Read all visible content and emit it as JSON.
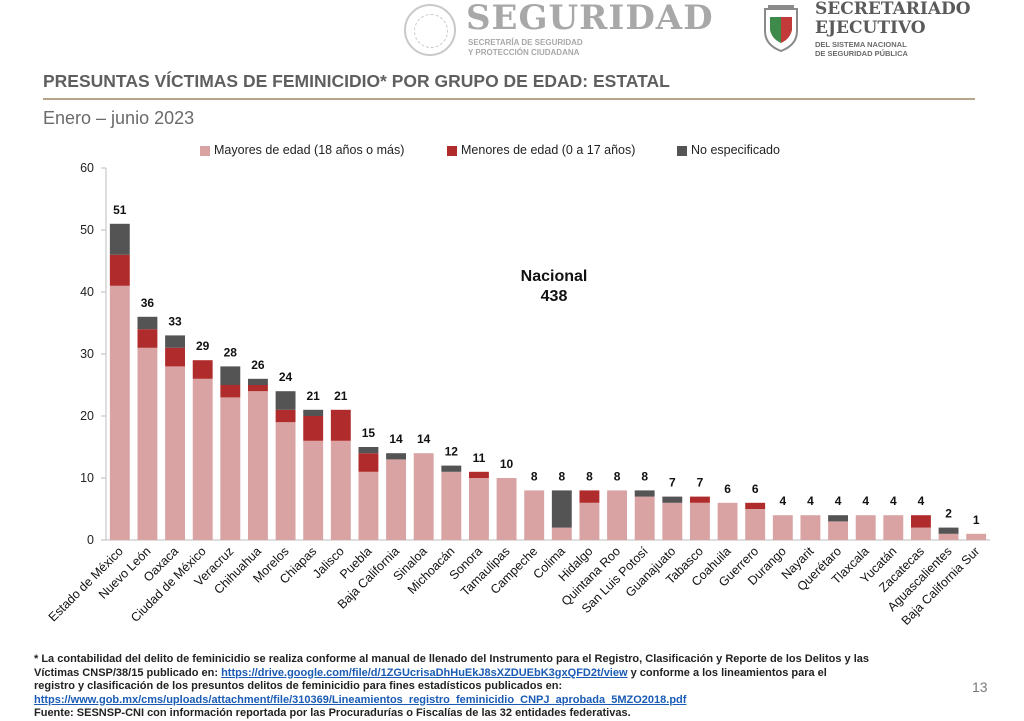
{
  "header": {
    "brand_main": "SEGURIDAD",
    "brand_sub_1": "SECRETARÍA DE SEGURIDAD",
    "brand_sub_2": "Y PROTECCIÓN CIUDADANA",
    "sesnsp_main_1": "SECRETARIADO",
    "sesnsp_main_2": "EJECUTIVO",
    "sesnsp_sub_1": "DEL SISTEMA NACIONAL",
    "sesnsp_sub_2": "DE SEGURIDAD PÚBLICA"
  },
  "title": "PRESUNTAS VÍCTIMAS DE FEMINICIDIO* POR GRUPO DE EDAD: ESTATAL",
  "subtitle": "Enero – junio 2023",
  "colors": {
    "mayores": "#d9a3a3",
    "menores": "#b02c2c",
    "no_especificado": "#545454",
    "title_rule": "#b5a58a"
  },
  "chart_data": {
    "type": "bar",
    "stacked": true,
    "categories": [
      "Estado de México",
      "Nuevo León",
      "Oaxaca",
      "Ciudad de México",
      "Veracruz",
      "Chihuahua",
      "Morelos",
      "Chiapas",
      "Jalisco",
      "Puebla",
      "Baja California",
      "Sinaloa",
      "Michoacán",
      "Sonora",
      "Tamaulipas",
      "Campeche",
      "Colima",
      "Hidalgo",
      "Quintana Roo",
      "San Luis Potosí",
      "Guanajuato",
      "Tabasco",
      "Coahuila",
      "Guerrero",
      "Durango",
      "Nayarit",
      "Querétaro",
      "Tlaxcala",
      "Yucatán",
      "Zacatecas",
      "Aguascalientes",
      "Baja California Sur"
    ],
    "series": [
      {
        "name": "Mayores de edad (18 años o más)",
        "values": [
          41,
          31,
          28,
          26,
          23,
          24,
          19,
          16,
          16,
          11,
          13,
          14,
          11,
          10,
          10,
          8,
          2,
          6,
          8,
          7,
          6,
          6,
          6,
          5,
          4,
          4,
          3,
          4,
          4,
          2,
          1,
          1
        ]
      },
      {
        "name": "Menores de edad (0 a 17 años)",
        "values": [
          5,
          3,
          3,
          3,
          2,
          1,
          2,
          4,
          5,
          3,
          0,
          0,
          0,
          1,
          0,
          0,
          0,
          2,
          0,
          0,
          0,
          1,
          0,
          1,
          0,
          0,
          0,
          0,
          0,
          2,
          0,
          0
        ]
      },
      {
        "name": "No especificado",
        "values": [
          5,
          2,
          2,
          0,
          3,
          1,
          3,
          1,
          0,
          1,
          1,
          0,
          1,
          0,
          0,
          0,
          6,
          0,
          0,
          1,
          1,
          0,
          0,
          0,
          0,
          0,
          1,
          0,
          0,
          0,
          1,
          0
        ]
      }
    ],
    "totals": [
      51,
      36,
      33,
      29,
      28,
      26,
      24,
      21,
      21,
      15,
      14,
      14,
      12,
      11,
      10,
      8,
      8,
      8,
      8,
      8,
      7,
      7,
      6,
      6,
      4,
      4,
      4,
      4,
      4,
      4,
      2,
      1
    ],
    "ylim": [
      0,
      60
    ],
    "yticks": [
      0,
      10,
      20,
      30,
      40,
      50,
      60
    ],
    "legend_position": "top",
    "annotation_label": "Nacional",
    "annotation_value": "438"
  },
  "footer": {
    "note_1": "* La contabilidad del delito de feminicidio se realiza conforme al manual de llenado del Instrumento para el Registro, Clasificación y Reporte de los Delitos y las",
    "note_2_prefix": "Víctimas CNSP/38/15 publicado en: ",
    "link_1": "https://drive.google.com/file/d/1ZGUcrisaDhHuEkJ8sXZDUEbK3gxQFD2t/view",
    "note_2_suffix": " y conforme a los lineamientos para el",
    "note_3": "registro y clasificación de los presuntos delitos de feminicidio para fines estadísticos publicados en:",
    "link_2": "https://www.gob.mx/cms/uploads/attachment/file/310369/Lineamientos_registro_feminicidio_CNPJ_aprobada_5MZO2018.pdf",
    "source": "Fuente: SESNSP-CNI con información reportada por las Procuradurías o Fiscalías de las 32 entidades federativas."
  },
  "page_number": "13"
}
